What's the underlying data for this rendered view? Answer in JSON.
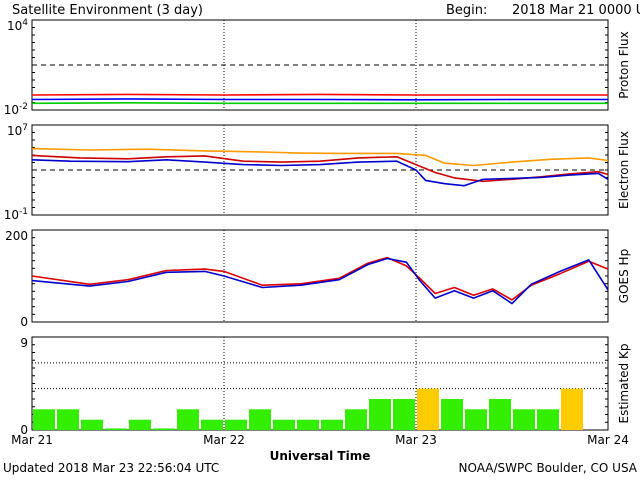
{
  "header": {
    "title": "Satellite Environment (3 day)",
    "begin_label": "Begin:",
    "begin_value": "2018 Mar 21 0000 UTC"
  },
  "footer": {
    "updated": "Updated 2018 Mar 23 22:56:04 UTC",
    "credit": "NOAA/SWPC Boulder, CO USA",
    "xaxis_title": "Universal Time"
  },
  "chart_data": {
    "x_ticks": [
      "Mar 21",
      "Mar 22",
      "Mar 23",
      "Mar 24"
    ],
    "x_range_days": [
      0,
      3
    ],
    "panels": [
      {
        "type": "line",
        "ylabel": "Proton Flux",
        "scale": "log",
        "ylim": [
          0.01,
          10000
        ],
        "y_tick_labels": [
          "10^4",
          "10^-2"
        ],
        "threshold": 10,
        "series": [
          {
            "color": "#ff0000",
            "points": [
              [
                0,
                0.1
              ],
              [
                0.5,
                0.11
              ],
              [
                1,
                0.1
              ],
              [
                1.5,
                0.11
              ],
              [
                2,
                0.1
              ],
              [
                2.5,
                0.1
              ],
              [
                3,
                0.1
              ]
            ]
          },
          {
            "color": "#0000ff",
            "points": [
              [
                0,
                0.05
              ],
              [
                0.5,
                0.055
              ],
              [
                1,
                0.05
              ],
              [
                1.5,
                0.05
              ],
              [
                2,
                0.048
              ],
              [
                2.5,
                0.05
              ],
              [
                3,
                0.05
              ]
            ]
          },
          {
            "color": "#00cc00",
            "points": [
              [
                0,
                0.028
              ],
              [
                0.5,
                0.03
              ],
              [
                1,
                0.028
              ],
              [
                1.5,
                0.028
              ],
              [
                2,
                0.028
              ],
              [
                2.5,
                0.028
              ],
              [
                3,
                0.028
              ]
            ]
          }
        ]
      },
      {
        "type": "line",
        "ylabel": "Electron Flux",
        "scale": "log",
        "ylim": [
          0.1,
          10000000
        ],
        "y_tick_labels": [
          "10^7",
          "10^-1"
        ],
        "threshold": 1000,
        "series": [
          {
            "color": "#ff9900",
            "points": [
              [
                0,
                80000
              ],
              [
                0.3,
                60000
              ],
              [
                0.6,
                70000
              ],
              [
                0.9,
                50000
              ],
              [
                1.2,
                40000
              ],
              [
                1.4,
                32000
              ],
              [
                1.6,
                30000
              ],
              [
                1.9,
                30000
              ],
              [
                2.05,
                20000
              ],
              [
                2.15,
                4000
              ],
              [
                2.3,
                2500
              ],
              [
                2.5,
                5000
              ],
              [
                2.7,
                9000
              ],
              [
                2.9,
                12000
              ],
              [
                3,
                7000
              ]
            ]
          },
          {
            "color": "#cc0000",
            "points": [
              [
                0,
                20000
              ],
              [
                0.25,
                12000
              ],
              [
                0.5,
                10000
              ],
              [
                0.7,
                15000
              ],
              [
                0.9,
                18000
              ],
              [
                1.1,
                6000
              ],
              [
                1.3,
                5000
              ],
              [
                1.5,
                6000
              ],
              [
                1.7,
                12000
              ],
              [
                1.9,
                15000
              ],
              [
                2.0,
                3000
              ],
              [
                2.1,
                600
              ],
              [
                2.2,
                200
              ],
              [
                2.35,
                100
              ],
              [
                2.5,
                150
              ],
              [
                2.65,
                250
              ],
              [
                2.8,
                450
              ],
              [
                2.95,
                700
              ],
              [
                3,
                400
              ]
            ]
          },
          {
            "color": "#0000cc",
            "points": [
              [
                0,
                8000
              ],
              [
                0.2,
                6000
              ],
              [
                0.5,
                5500
              ],
              [
                0.7,
                8000
              ],
              [
                0.9,
                5000
              ],
              [
                1.1,
                3000
              ],
              [
                1.3,
                2500
              ],
              [
                1.5,
                3000
              ],
              [
                1.7,
                5000
              ],
              [
                1.9,
                6000
              ],
              [
                2.0,
                1000
              ],
              [
                2.05,
                120
              ],
              [
                2.15,
                60
              ],
              [
                2.25,
                40
              ],
              [
                2.35,
                150
              ],
              [
                2.5,
                180
              ],
              [
                2.65,
                220
              ],
              [
                2.8,
                350
              ],
              [
                2.95,
                500
              ],
              [
                3,
                150
              ]
            ]
          }
        ]
      },
      {
        "type": "line",
        "ylabel": "GOES Hp",
        "scale": "linear",
        "ylim": [
          0,
          200
        ],
        "y_tick_labels": [
          "200",
          "0"
        ],
        "series": [
          {
            "color": "#dd0000",
            "points": [
              [
                0,
                100
              ],
              [
                0.3,
                82
              ],
              [
                0.5,
                92
              ],
              [
                0.7,
                112
              ],
              [
                0.9,
                115
              ],
              [
                1.0,
                110
              ],
              [
                1.2,
                80
              ],
              [
                1.4,
                83
              ],
              [
                1.6,
                95
              ],
              [
                1.75,
                128
              ],
              [
                1.85,
                140
              ],
              [
                1.95,
                122
              ],
              [
                2.02,
                95
              ],
              [
                2.1,
                62
              ],
              [
                2.2,
                75
              ],
              [
                2.3,
                58
              ],
              [
                2.4,
                72
              ],
              [
                2.5,
                48
              ],
              [
                2.6,
                80
              ],
              [
                2.75,
                105
              ],
              [
                2.9,
                132
              ],
              [
                3,
                115
              ]
            ]
          },
          {
            "color": "#0000cc",
            "points": [
              [
                0,
                90
              ],
              [
                0.3,
                78
              ],
              [
                0.5,
                88
              ],
              [
                0.7,
                108
              ],
              [
                0.9,
                110
              ],
              [
                1.0,
                100
              ],
              [
                1.2,
                75
              ],
              [
                1.4,
                80
              ],
              [
                1.6,
                92
              ],
              [
                1.75,
                125
              ],
              [
                1.85,
                138
              ],
              [
                1.95,
                130
              ],
              [
                2.02,
                90
              ],
              [
                2.1,
                52
              ],
              [
                2.2,
                68
              ],
              [
                2.3,
                52
              ],
              [
                2.4,
                68
              ],
              [
                2.5,
                40
              ],
              [
                2.6,
                82
              ],
              [
                2.75,
                110
              ],
              [
                2.9,
                135
              ],
              [
                3,
                70
              ]
            ]
          }
        ]
      },
      {
        "type": "bar",
        "ylabel": "Estimated Kp",
        "scale": "linear",
        "ylim": [
          0,
          9
        ],
        "y_tick_labels": [
          "9",
          "0"
        ],
        "dotted_levels": [
          4,
          6.5
        ],
        "bar_width_days": 0.125,
        "colors": {
          "quiet": "#33ee00",
          "active": "#ffcc00"
        },
        "values": [
          2,
          2,
          1,
          0.15,
          1,
          0.15,
          2,
          1,
          1,
          2,
          1,
          1,
          1,
          2,
          3,
          3,
          4,
          3,
          2,
          3,
          2,
          2,
          4
        ],
        "active_indices": [
          16,
          22
        ]
      }
    ]
  }
}
